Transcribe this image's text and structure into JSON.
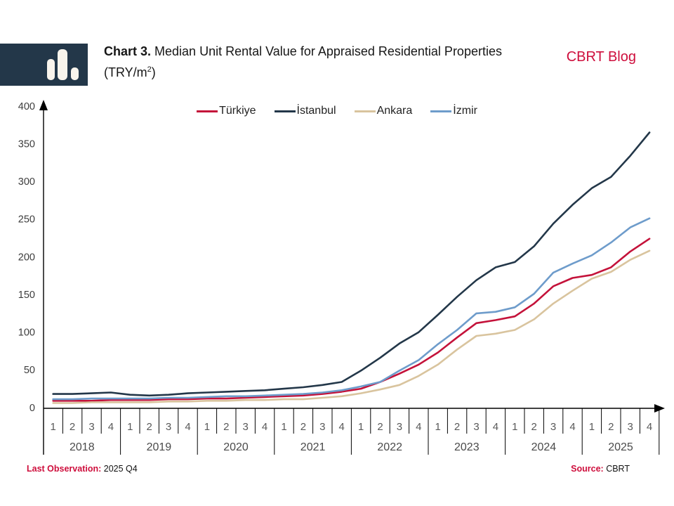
{
  "header": {
    "icon": "bar-chart-icon",
    "title": {
      "prefix": "Chart 3.",
      "main": " Median Unit Rental Value for Appraised Residential Properties (TRY/m",
      "sup": "2",
      "close": ")"
    },
    "brand": "CBRT Blog"
  },
  "footer": {
    "last_observation_label": "Last Observation:",
    "last_observation_value": "2025 Q4",
    "source_label": "Source:",
    "source_value": "CBRT"
  },
  "colors": {
    "crimson": "#CE0E3C",
    "navy_badge": "#233749",
    "icon_cream": "#F8F4EC",
    "axis": "#000000"
  },
  "chart_data": {
    "type": "line",
    "title": "Median Unit Rental Value for Appraised Residential Properties (TRY/m2)",
    "ylabel": "",
    "xlabel": "",
    "ylim": [
      0,
      400
    ],
    "yticks": [
      0,
      50,
      100,
      150,
      200,
      250,
      300,
      350,
      400
    ],
    "grid": false,
    "legend_position": "top-center",
    "quarter_labels": [
      "1",
      "2",
      "3",
      "4"
    ],
    "years": [
      "2018",
      "2019",
      "2020",
      "2021",
      "2022",
      "2023",
      "2024",
      "2025"
    ],
    "series": [
      {
        "name": "Türkiye",
        "color": "#C4123A",
        "values": [
          10,
          10,
          10,
          11,
          11,
          11,
          12,
          12,
          13,
          13,
          14,
          15,
          16,
          17,
          19,
          22,
          26,
          35,
          46,
          58,
          74,
          94,
          113,
          117,
          122,
          139,
          162,
          173,
          177,
          187,
          208,
          225
        ]
      },
      {
        "name": "İstanbul",
        "color": "#233749",
        "values": [
          19,
          19,
          20,
          21,
          18,
          17,
          18,
          20,
          21,
          22,
          23,
          24,
          26,
          28,
          31,
          35,
          50,
          67,
          86,
          101,
          124,
          148,
          170,
          187,
          194,
          215,
          245,
          270,
          292,
          307,
          335,
          366
        ]
      },
      {
        "name": "Ankara",
        "color": "#D9C49E",
        "values": [
          7,
          7,
          8,
          8,
          8,
          8,
          9,
          9,
          10,
          10,
          11,
          11,
          12,
          12,
          14,
          16,
          20,
          25,
          31,
          43,
          58,
          78,
          96,
          99,
          104,
          118,
          139,
          156,
          172,
          181,
          197,
          209
        ]
      },
      {
        "name": "İzmir",
        "color": "#6E9CCB",
        "values": [
          12,
          12,
          13,
          13,
          13,
          13,
          14,
          14,
          15,
          16,
          16,
          17,
          18,
          19,
          21,
          24,
          29,
          35,
          50,
          64,
          85,
          104,
          126,
          128,
          134,
          152,
          180,
          192,
          203,
          220,
          240,
          252
        ]
      }
    ]
  }
}
